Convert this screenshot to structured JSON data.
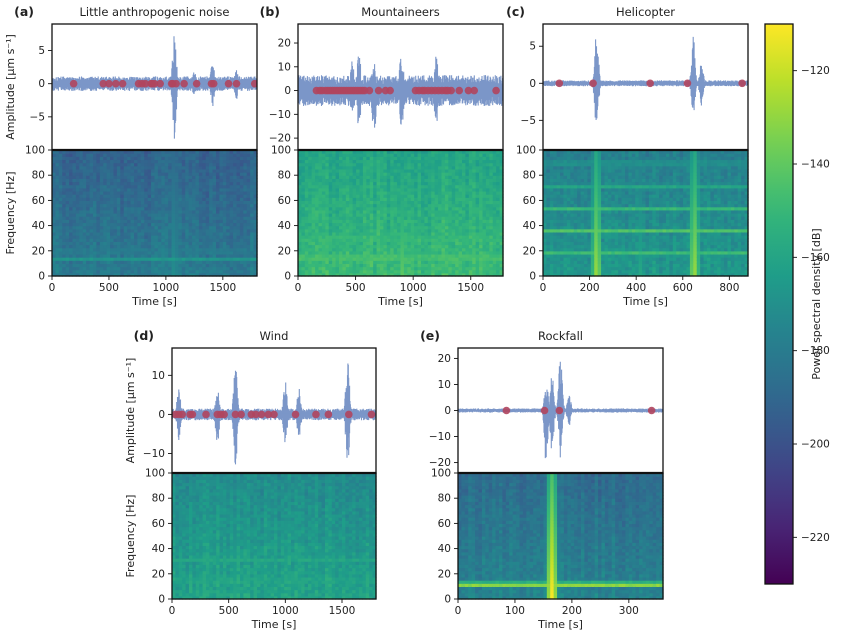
{
  "colorbar": {
    "label": "Power spectral density [dB]",
    "range": [
      -230,
      -110
    ],
    "ticks": [
      -120,
      -140,
      -160,
      -180,
      -200,
      -220
    ],
    "colormap": "viridis"
  },
  "colors": {
    "waveform": "#7b96c8",
    "marker": "#b0455e",
    "frame": "#111111"
  },
  "chart_data": [
    {
      "type": "line",
      "panel": "(a)",
      "title": "Little anthropogenic noise",
      "xlabel": "Time [s]",
      "ylabel": "Amplitude [μm s⁻¹]",
      "freq_label": "Frequency [Hz]",
      "xlim": [
        0,
        1800
      ],
      "xticks": [
        0,
        500,
        1000,
        1500
      ],
      "ylim": [
        -10,
        9
      ],
      "yticks": [
        -5,
        0,
        5
      ],
      "flim": [
        0,
        100
      ],
      "fticks": [
        0,
        20,
        40,
        60,
        80,
        100
      ],
      "amplitude_envelope": 1.1,
      "spikes": [
        {
          "t": 1075,
          "a": 7.8,
          "b": -8.5
        },
        {
          "t": 1410,
          "a": 3.2,
          "b": -3.5
        },
        {
          "t": 1250,
          "a": 2.0,
          "b": -2.0
        },
        {
          "t": 1620,
          "a": 2.2,
          "b": -2.4
        }
      ],
      "events": [
        190,
        450,
        500,
        560,
        620,
        760,
        790,
        820,
        870,
        880,
        900,
        950,
        1050,
        1060,
        1090,
        1160,
        1270,
        1400,
        1420,
        1550,
        1620,
        1780
      ],
      "spectrogram": {
        "base": 0.28,
        "bands": [
          {
            "f": 14,
            "level": 0.5
          },
          {
            "f": 20,
            "level": 0.45
          }
        ],
        "bursts": [
          {
            "t": 1075,
            "level": 0.5
          }
        ]
      }
    },
    {
      "type": "line",
      "panel": "(b)",
      "title": "Mountaineers",
      "xlabel": "Time [s]",
      "ylabel": "",
      "freq_label": "",
      "xlim": [
        0,
        1780
      ],
      "xticks": [
        0,
        500,
        1000,
        1500
      ],
      "ylim": [
        -25,
        28
      ],
      "yticks": [
        -20,
        -10,
        0,
        10,
        20
      ],
      "flim": [
        0,
        100
      ],
      "fticks": [
        0,
        20,
        40,
        60,
        80,
        100
      ],
      "amplitude_envelope": 6.5,
      "spikes": [
        {
          "t": 530,
          "a": 17,
          "b": -17
        },
        {
          "t": 900,
          "a": 20,
          "b": -18
        },
        {
          "t": 660,
          "a": 14,
          "b": -20
        },
        {
          "t": 1200,
          "a": 15,
          "b": -15
        },
        {
          "t": 470,
          "a": 14,
          "b": -12
        }
      ],
      "events": [
        160,
        190,
        210,
        240,
        260,
        280,
        300,
        320,
        340,
        360,
        380,
        400,
        420,
        440,
        460,
        480,
        500,
        520,
        540,
        560,
        580,
        620,
        700,
        760,
        800,
        1020,
        1050,
        1080,
        1100,
        1130,
        1160,
        1190,
        1220,
        1250,
        1280,
        1300,
        1330,
        1400,
        1480,
        1530,
        1720
      ],
      "spectrogram": {
        "base": 0.55,
        "bands": [
          {
            "f": 15,
            "level": 0.8
          },
          {
            "f": 30,
            "level": 0.75
          }
        ],
        "bursts": [
          {
            "t": 900,
            "level": 0.75
          }
        ]
      }
    },
    {
      "type": "line",
      "panel": "(c)",
      "title": "Helicopter",
      "xlabel": "Time [s]",
      "ylabel": "",
      "freq_label": "",
      "xlim": [
        0,
        880
      ],
      "xticks": [
        0,
        200,
        400,
        600,
        800
      ],
      "ylim": [
        -9,
        8
      ],
      "yticks": [
        -5,
        0,
        5
      ],
      "flim": [
        0,
        100
      ],
      "fticks": [
        0,
        20,
        40,
        60,
        80,
        100
      ],
      "amplitude_envelope": 0.4,
      "spikes": [
        {
          "t": 230,
          "a": 7.2,
          "b": -6.5
        },
        {
          "t": 645,
          "a": 6.5,
          "b": -4.5
        },
        {
          "t": 680,
          "a": 3.0,
          "b": -3.0
        }
      ],
      "events": [
        70,
        215,
        460,
        620,
        855
      ],
      "spectrogram": {
        "base": 0.4,
        "bands": [
          {
            "f": 18,
            "level": 0.7
          },
          {
            "f": 36,
            "level": 0.7
          },
          {
            "f": 54,
            "level": 0.65
          },
          {
            "f": 72,
            "level": 0.6
          },
          {
            "f": 90,
            "level": 0.55
          }
        ],
        "bursts": [
          {
            "t": 230,
            "level": 0.85
          },
          {
            "t": 420,
            "level": 0.6
          },
          {
            "t": 650,
            "level": 0.85
          }
        ]
      }
    },
    {
      "type": "line",
      "panel": "(d)",
      "title": "Wind",
      "xlabel": "Time [s]",
      "ylabel": "Amplitude [μm s⁻¹]",
      "freq_label": "Frequency [Hz]",
      "xlim": [
        0,
        1800
      ],
      "xticks": [
        0,
        500,
        1000,
        1500
      ],
      "ylim": [
        -15,
        17
      ],
      "yticks": [
        -10,
        0,
        10
      ],
      "flim": [
        0,
        100
      ],
      "fticks": [
        0,
        20,
        40,
        60,
        80,
        100
      ],
      "amplitude_envelope": 1.5,
      "spikes": [
        {
          "t": 560,
          "a": 13,
          "b": -14
        },
        {
          "t": 1550,
          "a": 14.5,
          "b": -13
        },
        {
          "t": 400,
          "a": 7,
          "b": -8
        },
        {
          "t": 1000,
          "a": 9,
          "b": -8
        },
        {
          "t": 1120,
          "a": 7,
          "b": -6
        },
        {
          "t": 60,
          "a": 7,
          "b": -7
        }
      ],
      "events": [
        30,
        60,
        90,
        160,
        180,
        300,
        400,
        430,
        460,
        560,
        610,
        700,
        740,
        790,
        850,
        900,
        1090,
        1270,
        1380,
        1560,
        1760
      ],
      "spectrogram": {
        "base": 0.45,
        "bands": [
          {
            "f": 15,
            "level": 0.65
          },
          {
            "f": 32,
            "level": 0.6
          }
        ],
        "bursts": [
          {
            "t": 560,
            "level": 0.6
          }
        ]
      }
    },
    {
      "type": "line",
      "panel": "(e)",
      "title": "Rockfall",
      "xlabel": "Time [s]",
      "ylabel": "",
      "freq_label": "",
      "xlim": [
        0,
        360
      ],
      "xticks": [
        0,
        100,
        200,
        300
      ],
      "ylim": [
        -24,
        24
      ],
      "yticks": [
        -20,
        -10,
        0,
        10,
        20
      ],
      "flim": [
        0,
        100
      ],
      "fticks": [
        0,
        20,
        40,
        60,
        80,
        100
      ],
      "amplitude_envelope": 0.8,
      "spikes": [
        {
          "t": 155,
          "a": 11,
          "b": -22
        },
        {
          "t": 165,
          "a": 14,
          "b": -16
        },
        {
          "t": 180,
          "a": 21,
          "b": -20
        },
        {
          "t": 195,
          "a": 6,
          "b": -6
        }
      ],
      "events": [
        85,
        152,
        178,
        340
      ],
      "spectrogram": {
        "base": 0.32,
        "bands": [
          {
            "f": 12,
            "level": 0.85
          }
        ],
        "bursts": [
          {
            "t": 165,
            "level": 1.0
          }
        ]
      }
    }
  ]
}
